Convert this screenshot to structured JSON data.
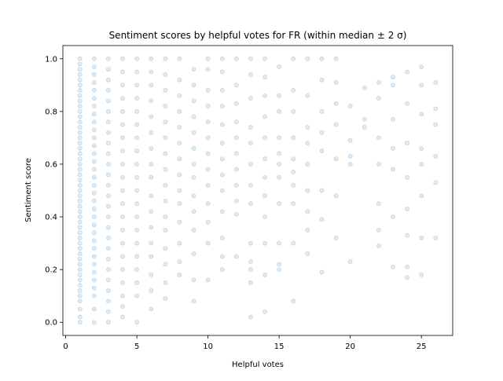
{
  "chart_data": {
    "type": "scatter",
    "title": "Sentiment scores by helpful votes for FR (within median ± 2 σ)",
    "xlabel": "Helpful votes",
    "ylabel": "Sentiment score",
    "xlim": [
      -0.2,
      27.2
    ],
    "ylim": [
      -0.05,
      1.05
    ],
    "xticks": [
      0,
      5,
      10,
      15,
      20,
      25
    ],
    "yticks": [
      0.0,
      0.2,
      0.4,
      0.6,
      0.8,
      1.0
    ],
    "xtick_labels": [
      "0",
      "5",
      "10",
      "15",
      "20",
      "25"
    ],
    "ytick_labels": [
      "0.0",
      "0.2",
      "0.4",
      "0.6",
      "0.8",
      "1.0"
    ],
    "grid": false,
    "marker_color": "#1f77b4",
    "point_alpha": 0.15,
    "series": [
      {
        "points_per_vote": [
          {
            "x": 1,
            "y": [
              0.0,
              0.02,
              0.05,
              0.08,
              0.1,
              0.12,
              0.14,
              0.16,
              0.18,
              0.2,
              0.22,
              0.24,
              0.26,
              0.28,
              0.3,
              0.32,
              0.34,
              0.36,
              0.38,
              0.4,
              0.42,
              0.44,
              0.46,
              0.48,
              0.5,
              0.52,
              0.54,
              0.56,
              0.58,
              0.6,
              0.62,
              0.64,
              0.66,
              0.68,
              0.7,
              0.72,
              0.74,
              0.76,
              0.78,
              0.8,
              0.82,
              0.84,
              0.86,
              0.88,
              0.9,
              0.92,
              0.94,
              0.96,
              0.98,
              1.0
            ]
          },
          {
            "x": 2,
            "y": [
              0.0,
              0.05,
              0.1,
              0.13,
              0.16,
              0.19,
              0.22,
              0.25,
              0.28,
              0.31,
              0.34,
              0.37,
              0.4,
              0.43,
              0.46,
              0.49,
              0.52,
              0.55,
              0.58,
              0.61,
              0.64,
              0.67,
              0.7,
              0.73,
              0.76,
              0.79,
              0.82,
              0.85,
              0.88,
              0.91,
              0.94,
              0.97,
              1.0
            ]
          },
          {
            "x": 3,
            "y": [
              0.0,
              0.04,
              0.08,
              0.12,
              0.16,
              0.2,
              0.24,
              0.28,
              0.32,
              0.36,
              0.4,
              0.44,
              0.48,
              0.52,
              0.56,
              0.6,
              0.64,
              0.68,
              0.72,
              0.76,
              0.8,
              0.84,
              0.88,
              0.92,
              0.96,
              1.0
            ]
          },
          {
            "x": 4,
            "y": [
              0.02,
              0.06,
              0.1,
              0.15,
              0.2,
              0.25,
              0.3,
              0.35,
              0.4,
              0.45,
              0.5,
              0.55,
              0.6,
              0.65,
              0.7,
              0.75,
              0.8,
              0.85,
              0.9,
              0.95,
              1.0
            ]
          },
          {
            "x": 5,
            "y": [
              0.0,
              0.1,
              0.15,
              0.2,
              0.25,
              0.3,
              0.35,
              0.4,
              0.45,
              0.5,
              0.55,
              0.6,
              0.65,
              0.7,
              0.75,
              0.8,
              0.85,
              0.9,
              0.95,
              1.0
            ]
          },
          {
            "x": 6,
            "y": [
              0.05,
              0.12,
              0.18,
              0.25,
              0.3,
              0.36,
              0.42,
              0.48,
              0.55,
              0.6,
              0.66,
              0.72,
              0.78,
              0.84,
              0.9,
              0.95,
              1.0
            ]
          },
          {
            "x": 7,
            "y": [
              0.09,
              0.15,
              0.22,
              0.28,
              0.35,
              0.4,
              0.46,
              0.52,
              0.58,
              0.64,
              0.7,
              0.76,
              0.82,
              0.88,
              0.94,
              1.0
            ]
          },
          {
            "x": 8,
            "y": [
              0.18,
              0.23,
              0.3,
              0.38,
              0.45,
              0.5,
              0.56,
              0.62,
              0.68,
              0.74,
              0.8,
              0.86,
              0.92,
              1.0
            ]
          },
          {
            "x": 9,
            "y": [
              0.08,
              0.16,
              0.26,
              0.35,
              0.42,
              0.48,
              0.55,
              0.6,
              0.66,
              0.72,
              0.78,
              0.84,
              0.9,
              0.96
            ]
          },
          {
            "x": 10,
            "y": [
              0.16,
              0.3,
              0.38,
              0.45,
              0.52,
              0.58,
              0.64,
              0.7,
              0.76,
              0.82,
              0.88,
              0.96,
              1.0
            ]
          },
          {
            "x": 11,
            "y": [
              0.2,
              0.25,
              0.32,
              0.42,
              0.5,
              0.56,
              0.62,
              0.68,
              0.75,
              0.82,
              0.88,
              0.95,
              1.0
            ]
          },
          {
            "x": 12,
            "y": [
              0.25,
              0.41,
              0.46,
              0.52,
              0.58,
              0.64,
              0.7,
              0.76,
              0.83,
              0.9,
              1.0
            ]
          },
          {
            "x": 13,
            "y": [
              0.02,
              0.15,
              0.2,
              0.23,
              0.3,
              0.45,
              0.52,
              0.6,
              0.68,
              0.74,
              0.85,
              0.94,
              1.0
            ]
          },
          {
            "x": 14,
            "y": [
              0.04,
              0.18,
              0.3,
              0.4,
              0.48,
              0.55,
              0.62,
              0.7,
              0.78,
              0.86,
              0.93,
              1.0
            ]
          },
          {
            "x": 15,
            "y": [
              0.2,
              0.22,
              0.3,
              0.45,
              0.55,
              0.6,
              0.64,
              0.7,
              0.8,
              0.86,
              0.97
            ]
          },
          {
            "x": 16,
            "y": [
              0.08,
              0.3,
              0.45,
              0.52,
              0.57,
              0.62,
              0.7,
              0.8,
              0.88,
              1.0
            ]
          },
          {
            "x": 17,
            "y": [
              0.26,
              0.35,
              0.42,
              0.5,
              0.6,
              0.68,
              0.74,
              0.86,
              1.0
            ]
          },
          {
            "x": 18,
            "y": [
              0.19,
              0.39,
              0.5,
              0.65,
              0.72,
              0.8,
              0.92,
              1.0
            ]
          },
          {
            "x": 19,
            "y": [
              0.32,
              0.48,
              0.62,
              0.75,
              0.83,
              0.91,
              1.0
            ]
          },
          {
            "x": 20,
            "y": [
              0.23,
              0.6,
              0.63,
              0.69,
              0.82
            ]
          },
          {
            "x": 21,
            "y": [
              0.77,
              0.89,
              0.74
            ]
          },
          {
            "x": 22,
            "y": [
              0.29,
              0.35,
              0.45,
              0.6,
              0.7,
              0.85,
              0.91
            ]
          },
          {
            "x": 23,
            "y": [
              0.21,
              0.4,
              0.58,
              0.66,
              0.77,
              0.9,
              0.93
            ]
          },
          {
            "x": 24,
            "y": [
              0.17,
              0.21,
              0.33,
              0.43,
              0.55,
              0.68,
              0.83,
              0.95
            ]
          },
          {
            "x": 25,
            "y": [
              0.18,
              0.32,
              0.48,
              0.6,
              0.66,
              0.79,
              0.9,
              0.97
            ]
          },
          {
            "x": 26,
            "y": [
              0.32,
              0.53,
              0.63,
              0.75,
              0.81,
              0.91
            ]
          }
        ]
      }
    ]
  }
}
